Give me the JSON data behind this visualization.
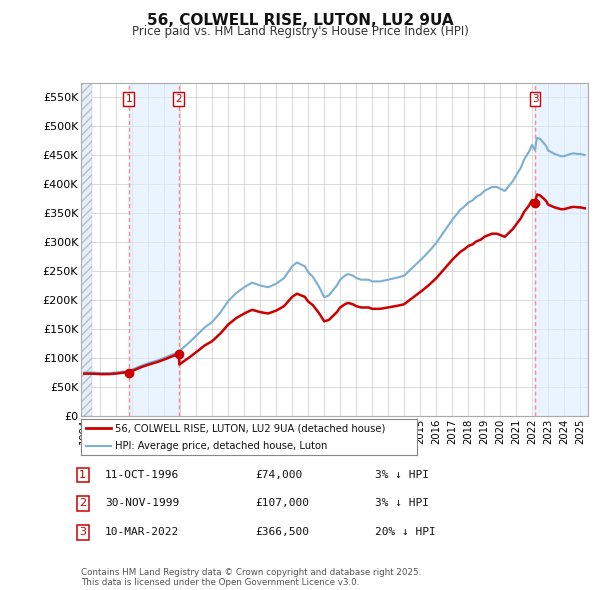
{
  "title": "56, COLWELL RISE, LUTON, LU2 9UA",
  "subtitle": "Price paid vs. HM Land Registry's House Price Index (HPI)",
  "ylim": [
    0,
    575000
  ],
  "xlim_start": 1993.8,
  "xlim_end": 2025.5,
  "yticks": [
    0,
    50000,
    100000,
    150000,
    200000,
    250000,
    300000,
    350000,
    400000,
    450000,
    500000,
    550000
  ],
  "ytick_labels": [
    "£0",
    "£50K",
    "£100K",
    "£150K",
    "£200K",
    "£250K",
    "£300K",
    "£350K",
    "£400K",
    "£450K",
    "£500K",
    "£550K"
  ],
  "xticks": [
    1994,
    1995,
    1996,
    1997,
    1998,
    1999,
    2000,
    2001,
    2002,
    2003,
    2004,
    2005,
    2006,
    2007,
    2008,
    2009,
    2010,
    2011,
    2012,
    2013,
    2014,
    2015,
    2016,
    2017,
    2018,
    2019,
    2020,
    2021,
    2022,
    2023,
    2024,
    2025
  ],
  "hpi_color": "#7bafd4",
  "price_color": "#cc0000",
  "vline_color": "#ff8888",
  "dot_color": "#cc0000",
  "shade1_color": "#ddeeff",
  "shade3_color": "#ddeeff",
  "sale_points": [
    {
      "year": 1996.78,
      "price": 74000,
      "label": "1"
    },
    {
      "year": 1999.92,
      "price": 107000,
      "label": "2"
    },
    {
      "year": 2022.19,
      "price": 366500,
      "label": "3"
    }
  ],
  "legend_entries": [
    {
      "label": "56, COLWELL RISE, LUTON, LU2 9UA (detached house)",
      "color": "#cc0000",
      "lw": 2
    },
    {
      "label": "HPI: Average price, detached house, Luton",
      "color": "#7bafd4",
      "lw": 1.5
    }
  ],
  "table_rows": [
    {
      "num": "1",
      "date": "11-OCT-1996",
      "price": "£74,000",
      "note": "3% ↓ HPI"
    },
    {
      "num": "2",
      "date": "30-NOV-1999",
      "price": "£107,000",
      "note": "3% ↓ HPI"
    },
    {
      "num": "3",
      "date": "10-MAR-2022",
      "price": "£366,500",
      "note": "20% ↓ HPI"
    }
  ],
  "footer": "Contains HM Land Registry data © Crown copyright and database right 2025.\nThis data is licensed under the Open Government Licence v3.0.",
  "background_color": "#ffffff",
  "plot_bg_color": "#ffffff"
}
